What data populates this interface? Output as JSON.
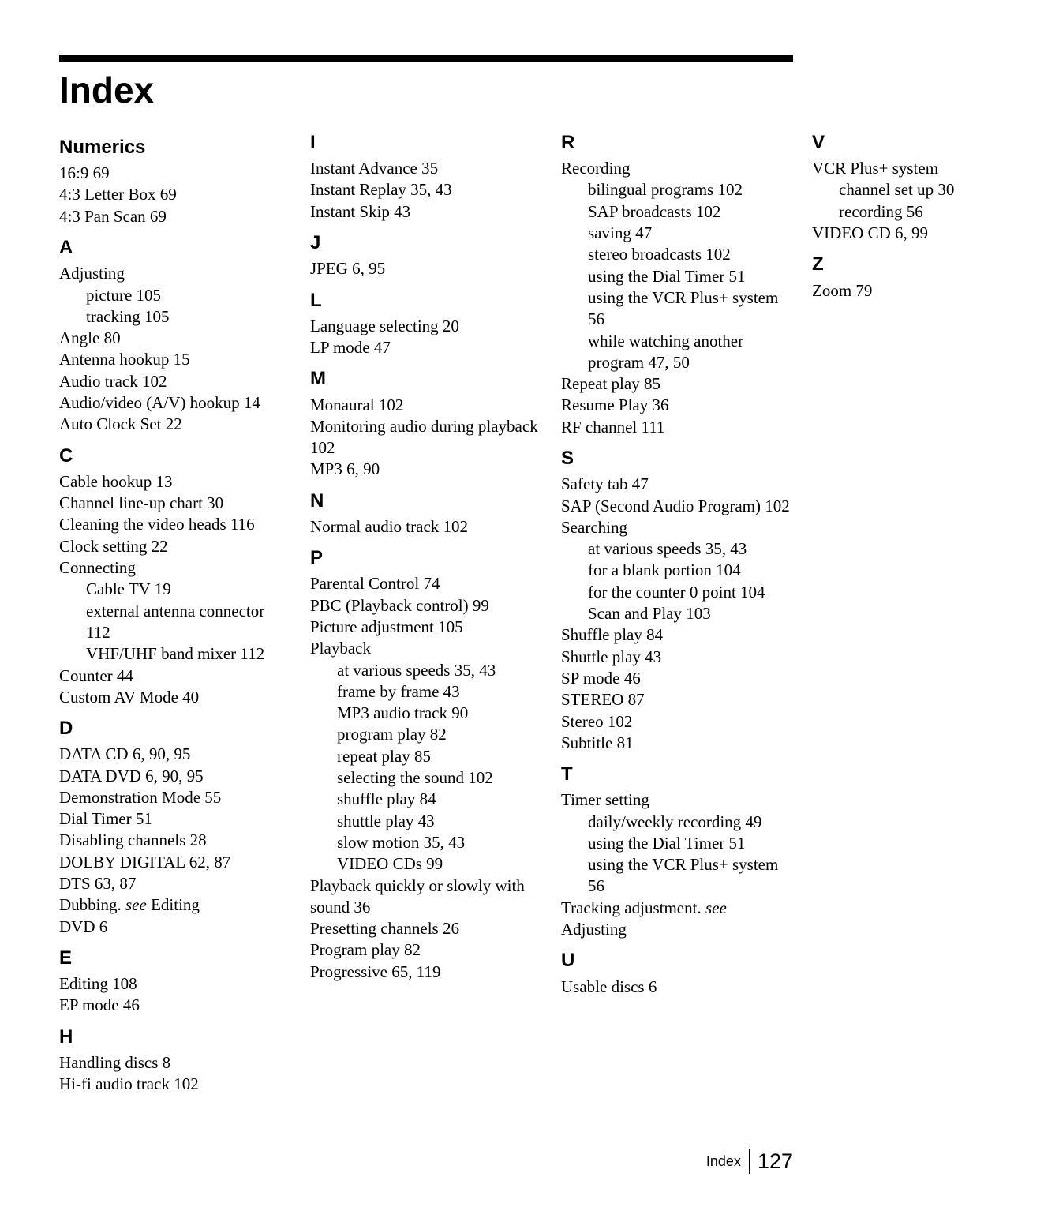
{
  "title": "Index",
  "footer": {
    "label": "Index",
    "page": "127"
  },
  "sections": [
    {
      "heading": "Numerics",
      "items": [
        {
          "t": "16:9 69"
        },
        {
          "t": "4:3 Letter Box 69"
        },
        {
          "t": "4:3 Pan Scan 69"
        }
      ]
    },
    {
      "heading": "A",
      "items": [
        {
          "t": "Adjusting"
        },
        {
          "t": "picture 105",
          "sub": true
        },
        {
          "t": "tracking 105",
          "sub": true
        },
        {
          "t": "Angle 80"
        },
        {
          "t": "Antenna hookup 15"
        },
        {
          "t": "Audio track 102"
        },
        {
          "t": "Audio/video (A/V) hookup 14"
        },
        {
          "t": "Auto Clock Set 22"
        }
      ]
    },
    {
      "heading": "C",
      "items": [
        {
          "t": "Cable hookup 13"
        },
        {
          "t": "Channel line-up chart 30"
        },
        {
          "t": "Cleaning the video heads 116"
        },
        {
          "t": "Clock setting 22"
        },
        {
          "t": "Connecting"
        },
        {
          "t": "Cable TV 19",
          "sub": true
        },
        {
          "t": "external antenna connector 112",
          "sub": true
        },
        {
          "t": "VHF/UHF band mixer 112",
          "sub": true
        },
        {
          "t": "Counter 44"
        },
        {
          "t": "Custom AV Mode 40"
        }
      ]
    },
    {
      "heading": "D",
      "items": [
        {
          "t": "DATA CD 6, 90, 95"
        },
        {
          "t": "DATA DVD 6, 90, 95"
        },
        {
          "t": "Demonstration Mode 55"
        },
        {
          "t": "Dial Timer 51"
        },
        {
          "t": "Disabling channels 28"
        },
        {
          "t": "DOLBY DIGITAL 62, 87"
        },
        {
          "t": "DTS 63, 87"
        },
        {
          "t": "Dubbing. see Editing"
        },
        {
          "t": "DVD 6"
        }
      ]
    },
    {
      "heading": "E",
      "items": [
        {
          "t": "Editing 108"
        },
        {
          "t": "EP mode 46"
        }
      ]
    },
    {
      "heading": "H",
      "items": [
        {
          "t": "Handling discs 8"
        },
        {
          "t": "Hi-fi audio track 102"
        }
      ]
    },
    {
      "heading": "I",
      "items": [
        {
          "t": "Instant Advance 35"
        },
        {
          "t": "Instant Replay 35, 43"
        },
        {
          "t": "Instant Skip 43"
        }
      ]
    },
    {
      "heading": "J",
      "items": [
        {
          "t": "JPEG 6, 95"
        }
      ]
    },
    {
      "heading": "L",
      "items": [
        {
          "t": "Language selecting 20"
        },
        {
          "t": "LP mode 47"
        }
      ]
    },
    {
      "heading": "M",
      "items": [
        {
          "t": "Monaural 102"
        },
        {
          "t": "Monitoring audio during playback 102"
        },
        {
          "t": "MP3 6, 90"
        }
      ]
    },
    {
      "heading": "N",
      "items": [
        {
          "t": "Normal audio track 102"
        }
      ]
    },
    {
      "heading": "P",
      "items": [
        {
          "t": "Parental Control 74"
        },
        {
          "t": "PBC (Playback control) 99"
        },
        {
          "t": "Picture adjustment 105"
        },
        {
          "t": "Playback"
        },
        {
          "t": "at various speeds 35, 43",
          "sub": true
        },
        {
          "t": "frame by frame 43",
          "sub": true
        },
        {
          "t": "MP3 audio track 90",
          "sub": true
        },
        {
          "t": "program play 82",
          "sub": true
        },
        {
          "t": "repeat play 85",
          "sub": true
        },
        {
          "t": "selecting the sound 102",
          "sub": true
        },
        {
          "t": "shuffle play 84",
          "sub": true
        },
        {
          "t": "shuttle play 43",
          "sub": true
        },
        {
          "t": "slow motion 35, 43",
          "sub": true
        },
        {
          "t": "VIDEO CDs 99",
          "sub": true
        },
        {
          "t": "Playback quickly or slowly with sound 36"
        },
        {
          "t": "Presetting channels 26"
        },
        {
          "t": "Program play 82"
        },
        {
          "t": "Progressive 65, 119"
        }
      ]
    },
    {
      "heading": "R",
      "items": [
        {
          "t": "Recording"
        },
        {
          "t": "bilingual programs 102",
          "sub": true
        },
        {
          "t": "SAP broadcasts 102",
          "sub": true
        },
        {
          "t": "saving 47",
          "sub": true
        },
        {
          "t": "stereo broadcasts 102",
          "sub": true
        },
        {
          "t": "using the Dial Timer 51",
          "sub": true
        },
        {
          "t": "using the VCR Plus+ system 56",
          "sub": true
        },
        {
          "t": "while watching another program 47, 50",
          "sub": true
        },
        {
          "t": "Repeat play 85"
        },
        {
          "t": "Resume Play 36"
        },
        {
          "t": "RF channel 111"
        }
      ]
    },
    {
      "heading": "S",
      "items": [
        {
          "t": "Safety tab 47"
        },
        {
          "t": "SAP (Second Audio Program) 102"
        },
        {
          "t": "Searching"
        },
        {
          "t": "at various speeds 35, 43",
          "sub": true
        },
        {
          "t": "for a blank portion 104",
          "sub": true
        },
        {
          "t": "for the counter 0 point 104",
          "sub": true
        },
        {
          "t": "Scan and Play 103",
          "sub": true
        },
        {
          "t": "Shuffle play 84"
        },
        {
          "t": "Shuttle play 43"
        },
        {
          "t": "SP mode 46"
        },
        {
          "t": "STEREO 87"
        },
        {
          "t": "Stereo 102"
        },
        {
          "t": "Subtitle 81"
        }
      ]
    },
    {
      "heading": "T",
      "items": [
        {
          "t": "Timer setting"
        },
        {
          "t": "daily/weekly recording 49",
          "sub": true
        },
        {
          "t": "using the Dial Timer 51",
          "sub": true
        },
        {
          "t": "using the VCR Plus+ system 56",
          "sub": true
        },
        {
          "t": "Tracking adjustment. see Adjusting"
        }
      ]
    },
    {
      "heading": "U",
      "items": [
        {
          "t": "Usable discs 6"
        }
      ]
    },
    {
      "heading": "V",
      "items": [
        {
          "t": "VCR Plus+ system"
        },
        {
          "t": "channel set up 30",
          "sub": true
        },
        {
          "t": "recording 56",
          "sub": true
        },
        {
          "t": "VIDEO CD 6, 99"
        }
      ]
    },
    {
      "heading": "Z",
      "items": [
        {
          "t": "Zoom 79"
        }
      ]
    }
  ]
}
